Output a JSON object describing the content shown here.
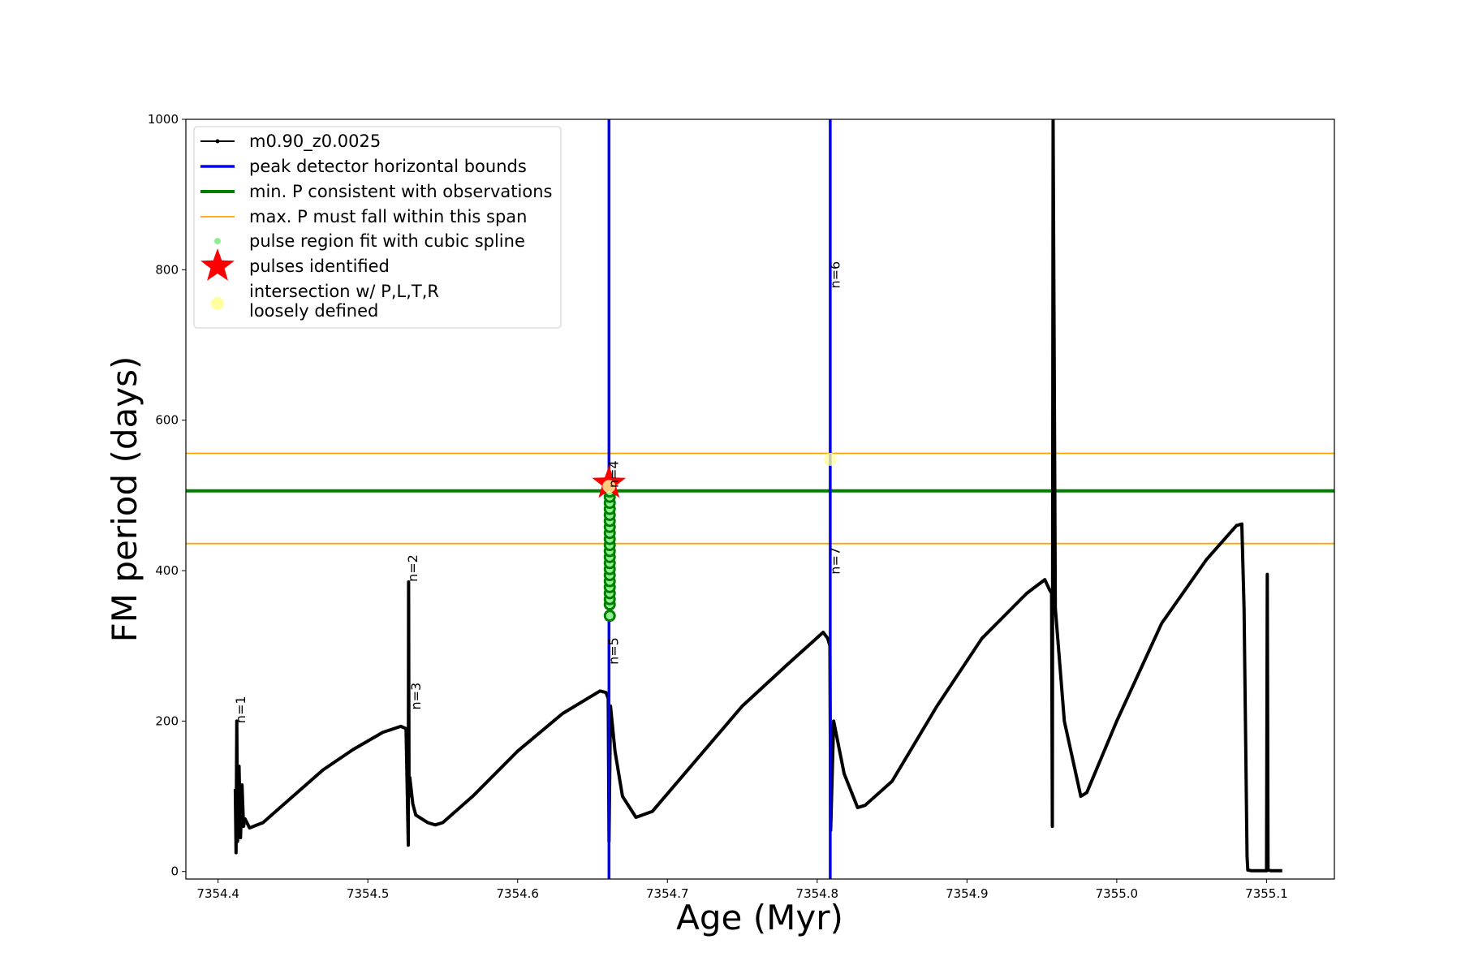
{
  "chart_data": {
    "type": "line",
    "xlabel": "Age (Myr)",
    "ylabel": "FM period (days)",
    "xlim": [
      7354.3785,
      7355.1453
    ],
    "ylim": [
      -10,
      1000
    ],
    "xticks": [
      7354.4,
      7354.5,
      7354.6,
      7354.7,
      7354.8,
      7354.9,
      {
        "value": 7355.0,
        "label": "7355.0"
      },
      7355.1
    ],
    "yticks": [
      0,
      200,
      400,
      600,
      800,
      1000
    ],
    "legend": "upper left",
    "series": [
      {
        "name": "m0.90_z0.0025",
        "color": "#000000",
        "x": [
          7354.4115,
          7354.412,
          7354.4125,
          7354.413,
          7354.414,
          7354.415,
          7354.416,
          7354.417,
          7354.418,
          7354.421,
          7354.43,
          7354.45,
          7354.47,
          7354.49,
          7354.51,
          7354.522,
          7354.5255,
          7354.527,
          7354.5272,
          7354.5275,
          7354.528,
          7354.53,
          7354.532,
          7354.54,
          7354.545,
          7354.55,
          7354.57,
          7354.6,
          7354.63,
          7354.655,
          7354.659,
          7354.6605,
          7354.661,
          7354.662,
          7354.665,
          7354.67,
          7354.679,
          7354.69,
          7354.72,
          7354.75,
          7354.78,
          7354.804,
          7354.807,
          7354.8085,
          7354.809,
          7354.811,
          7354.818,
          7354.827,
          7354.832,
          7354.85,
          7354.88,
          7354.91,
          7354.94,
          7354.952,
          7354.955,
          7354.9565,
          7354.957,
          7354.9575,
          7354.959,
          7354.965,
          7354.976,
          7354.98,
          7355.0,
          7355.03,
          7355.06,
          7355.08,
          7355.0835,
          7355.085,
          7355.087,
          7355.0875,
          7355.09,
          7355.1,
          7355.1005,
          7355.101,
          7355.103,
          7355.1105
        ],
        "values": [
          110,
          25,
          200,
          40,
          140,
          45,
          115,
          60,
          70,
          58,
          65,
          100,
          135,
          162,
          185,
          193,
          190,
          35,
          385,
          100,
          125,
          90,
          75,
          65,
          62,
          65,
          100,
          160,
          210,
          240,
          238,
          230,
          40,
          220,
          160,
          100,
          72,
          80,
          150,
          220,
          275,
          318,
          310,
          300,
          55,
          200,
          130,
          85,
          88,
          120,
          220,
          310,
          370,
          388,
          375,
          370,
          60,
          1000,
          350,
          200,
          100,
          105,
          200,
          330,
          415,
          460,
          462,
          350,
          20,
          2,
          1,
          1,
          395,
          2,
          1,
          1
        ]
      }
    ],
    "vlines": {
      "name": "peak detector horizontal bounds",
      "color": "#0000ff",
      "values": [
        7354.661,
        7354.8087
      ]
    },
    "hline_min": {
      "name": "min. P consistent with observations",
      "color": "#008000",
      "values": [
        506
      ]
    },
    "hline_max": {
      "name": "max. P must fall within this span",
      "color": "#ffa500",
      "values": [
        556,
        436
      ]
    },
    "pulse_region": {
      "name": "pulse region fit with cubic spline",
      "color": "#90ee90",
      "edgecolor": "#008000",
      "x": [
        7354.6615,
        7354.6615,
        7354.6615,
        7354.6615,
        7354.6615,
        7354.6615,
        7354.6615,
        7354.6615,
        7354.6615,
        7354.6615,
        7354.6615,
        7354.6615,
        7354.6615,
        7354.6615,
        7354.6615,
        7354.6615,
        7354.6615,
        7354.6615,
        7354.6615,
        7354.6615,
        7354.6615
      ],
      "values": [
        340,
        355,
        362,
        370,
        378,
        386,
        394,
        402,
        410,
        418,
        426,
        434,
        442,
        450,
        458,
        466,
        474,
        482,
        490,
        498,
        505
      ]
    },
    "pulses": {
      "name": "pulses identified",
      "color": "#ff0000",
      "x": [
        7354.661
      ],
      "values": [
        516
      ]
    },
    "intersection": {
      "name": [
        "intersection w/ P,L,T,R",
        "loosely defined"
      ],
      "color": "#ffffa0",
      "x": [
        7354.661,
        7354.8087
      ],
      "values": [
        512,
        548
      ]
    },
    "annotations": [
      {
        "text": "n=1",
        "x": 7354.418,
        "y": 197
      },
      {
        "text": "n=2",
        "x": 7354.533,
        "y": 385
      },
      {
        "text": "n=3",
        "x": 7354.535,
        "y": 215
      },
      {
        "text": "n=4",
        "x": 7354.667,
        "y": 510
      },
      {
        "text": "n=5",
        "x": 7354.667,
        "y": 275
      },
      {
        "text": "n=6",
        "x": 7354.815,
        "y": 775
      },
      {
        "text": "n=7",
        "x": 7354.815,
        "y": 395
      }
    ]
  }
}
